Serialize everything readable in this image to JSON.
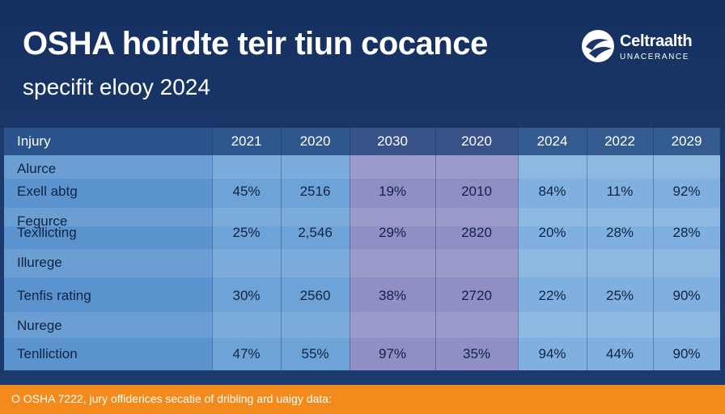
{
  "header": {
    "title": "OSHA hoirdte teir tiun cocance",
    "subtitle": "specifit elooy 2024"
  },
  "brand": {
    "name": "Celtraalth",
    "tagline": "UNACERANCE",
    "icon": "wave-logo-icon"
  },
  "chart_data": {
    "type": "table",
    "corner_label": "Injury",
    "columns": [
      "2021",
      "2020",
      "2030",
      "2020",
      "2024",
      "2022",
      "2029"
    ],
    "rows": [
      {
        "labels": [
          "Alurce",
          "Exell abtg"
        ],
        "values": [
          "45%",
          "2516",
          "19%",
          "2010",
          "84%",
          "11%",
          "92%"
        ]
      },
      {
        "labels": [
          "Fegurce",
          "Texllicting"
        ],
        "values": [
          "25%",
          "2,546",
          "29%",
          "2820",
          "20%",
          "28%",
          "28%"
        ]
      },
      {
        "labels": [
          "Illurege",
          "Tenfis rating"
        ],
        "values": [
          "30%",
          "2560",
          "38%",
          "2720",
          "22%",
          "25%",
          "90%"
        ]
      },
      {
        "labels": [
          "Nurege",
          "Tenlliction"
        ],
        "values": [
          "47%",
          "55%",
          "97%",
          "35%",
          "94%",
          "44%",
          "90%"
        ]
      }
    ],
    "column_colors": [
      "#5b93cf",
      "#6ea3d8",
      "#6ea3d8",
      "#8f8fc6",
      "#8f8fc6",
      "#7fb0df",
      "#7fb0df",
      "#7fb0df"
    ]
  },
  "footer": {
    "text": "O OSHA 7222, jury offiderices secatie of dribling ard uaigy data:"
  }
}
